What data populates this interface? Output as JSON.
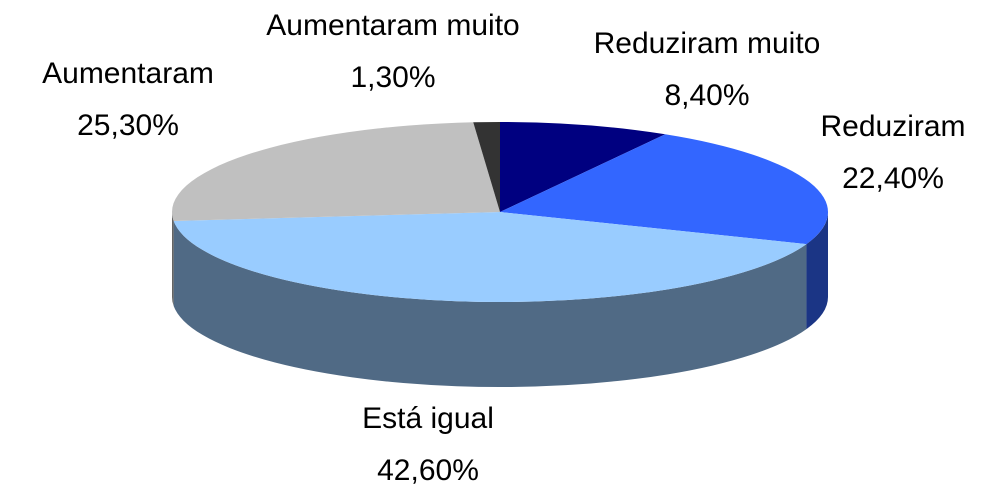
{
  "chart_data": {
    "type": "pie",
    "categories": [
      "Reduziram muito",
      "Reduziram",
      "Está igual",
      "Aumentaram",
      "Aumentaram muito"
    ],
    "values": [
      8.4,
      22.4,
      42.6,
      25.3,
      1.3
    ],
    "value_labels": [
      "8,40%",
      "22,40%",
      "42,60%",
      "25,30%",
      "1,30%"
    ],
    "colors": [
      "#000080",
      "#3366ff",
      "#99ccff",
      "#c0c0c0",
      "#333333"
    ]
  }
}
